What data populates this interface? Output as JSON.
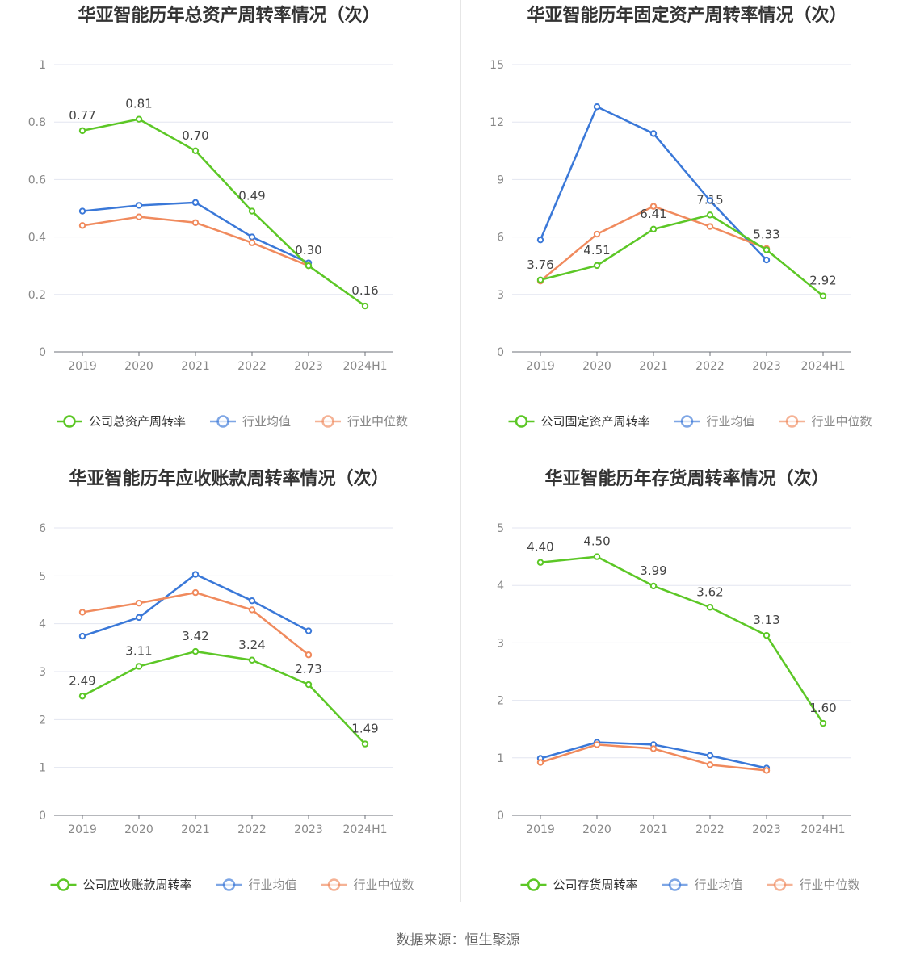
{
  "source_text": "数据来源：恒生聚源",
  "colors": {
    "company": "#5cc726",
    "average": "#3a78d8",
    "median": "#f08a5d"
  },
  "chart_data": [
    {
      "type": "line",
      "title": "华亚智能历年总资产周转率情况（次）",
      "categories": [
        "2019",
        "2020",
        "2021",
        "2022",
        "2023",
        "2024H1"
      ],
      "ylim": [
        0,
        1
      ],
      "yticks": [
        0,
        0.2,
        0.4,
        0.6,
        0.8,
        1
      ],
      "ytick_labels": [
        "0",
        "0.2",
        "0.4",
        "0.6",
        "0.8",
        "1"
      ],
      "series": [
        {
          "name": "公司总资产周转率",
          "values": [
            0.77,
            0.81,
            0.7,
            0.49,
            0.3,
            0.16
          ],
          "labels": [
            "0.77",
            "0.81",
            "0.70",
            "0.49",
            "0.30",
            "0.16"
          ]
        },
        {
          "name": "行业均值",
          "values": [
            0.49,
            0.51,
            0.52,
            0.4,
            0.31,
            null
          ]
        },
        {
          "name": "行业中位数",
          "values": [
            0.44,
            0.47,
            0.45,
            0.38,
            0.3,
            null
          ]
        }
      ]
    },
    {
      "type": "line",
      "title": "华亚智能历年固定资产周转率情况（次）",
      "categories": [
        "2019",
        "2020",
        "2021",
        "2022",
        "2023",
        "2024H1"
      ],
      "ylim": [
        0,
        15
      ],
      "yticks": [
        0,
        3,
        6,
        9,
        12,
        15
      ],
      "ytick_labels": [
        "0",
        "3",
        "6",
        "9",
        "12",
        "15"
      ],
      "series": [
        {
          "name": "公司固定资产周转率",
          "values": [
            3.76,
            4.51,
            6.41,
            7.15,
            5.33,
            2.92
          ],
          "labels": [
            "3.76",
            "4.51",
            "6.41",
            "7.15",
            "5.33",
            "2.92"
          ]
        },
        {
          "name": "行业均值",
          "values": [
            5.85,
            12.8,
            11.4,
            7.9,
            4.8,
            null
          ]
        },
        {
          "name": "行业中位数",
          "values": [
            3.7,
            6.15,
            7.6,
            6.55,
            5.4,
            null
          ]
        }
      ]
    },
    {
      "type": "line",
      "title": "华亚智能历年应收账款周转率情况（次）",
      "categories": [
        "2019",
        "2020",
        "2021",
        "2022",
        "2023",
        "2024H1"
      ],
      "ylim": [
        0,
        6
      ],
      "yticks": [
        0,
        1,
        2,
        3,
        4,
        5,
        6
      ],
      "ytick_labels": [
        "0",
        "1",
        "2",
        "3",
        "4",
        "5",
        "6"
      ],
      "series": [
        {
          "name": "公司应收账款周转率",
          "values": [
            2.49,
            3.11,
            3.42,
            3.24,
            2.73,
            1.49
          ],
          "labels": [
            "2.49",
            "3.11",
            "3.42",
            "3.24",
            "2.73",
            "1.49"
          ]
        },
        {
          "name": "行业均值",
          "values": [
            3.74,
            4.13,
            5.03,
            4.48,
            3.85,
            null
          ]
        },
        {
          "name": "行业中位数",
          "values": [
            4.24,
            4.43,
            4.65,
            4.29,
            3.35,
            null
          ]
        }
      ]
    },
    {
      "type": "line",
      "title": "华亚智能历年存货周转率情况（次）",
      "categories": [
        "2019",
        "2020",
        "2021",
        "2022",
        "2023",
        "2024H1"
      ],
      "ylim": [
        0,
        5
      ],
      "yticks": [
        0,
        1,
        2,
        3,
        4,
        5
      ],
      "ytick_labels": [
        "0",
        "1",
        "2",
        "3",
        "4",
        "5"
      ],
      "series": [
        {
          "name": "公司存货周转率",
          "values": [
            4.4,
            4.5,
            3.99,
            3.62,
            3.13,
            1.6
          ],
          "labels": [
            "4.40",
            "4.50",
            "3.99",
            "3.62",
            "3.13",
            "1.60"
          ]
        },
        {
          "name": "行业均值",
          "values": [
            0.99,
            1.27,
            1.23,
            1.04,
            0.82,
            null
          ]
        },
        {
          "name": "行业中位数",
          "values": [
            0.92,
            1.23,
            1.16,
            0.88,
            0.78,
            null
          ]
        }
      ]
    }
  ]
}
